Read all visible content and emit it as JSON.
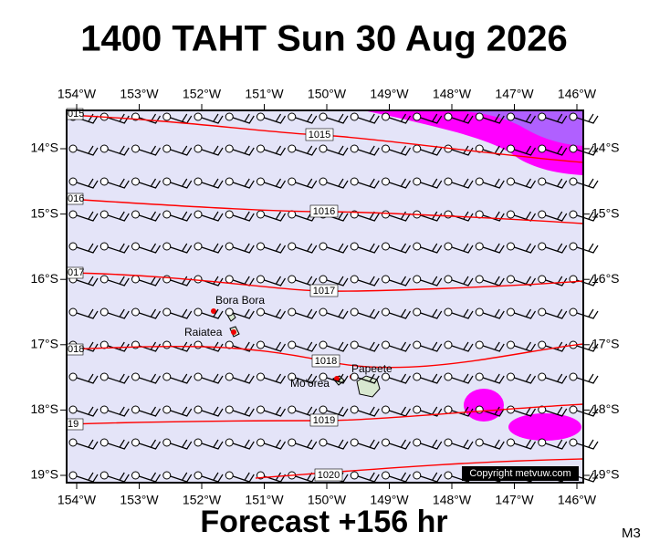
{
  "header": {
    "title": "1400 TAHT Sun 30 Aug 2026"
  },
  "footer": {
    "forecast": "Forecast +156 hr",
    "model": "M3"
  },
  "map": {
    "lon_labels": [
      "154°W",
      "153°W",
      "152°W",
      "151°W",
      "150°W",
      "149°W",
      "148°W",
      "147°W",
      "146°W"
    ],
    "lat_labels": [
      "14°S",
      "15°S",
      "16°S",
      "17°S",
      "18°S",
      "19°S"
    ],
    "isobars": [
      {
        "label": "1015",
        "edge_label": "015"
      },
      {
        "label": "1016",
        "edge_label": "016"
      },
      {
        "label": "1017",
        "edge_label": "017"
      },
      {
        "label": "1018",
        "edge_label": "018"
      },
      {
        "label": "1019",
        "edge_label": "19"
      },
      {
        "label": "1020"
      }
    ],
    "places": [
      "Bora Bora",
      "Raiatea",
      "Mo'orea",
      "Papeete"
    ],
    "copyright": "Copyright metvuw.com"
  }
}
